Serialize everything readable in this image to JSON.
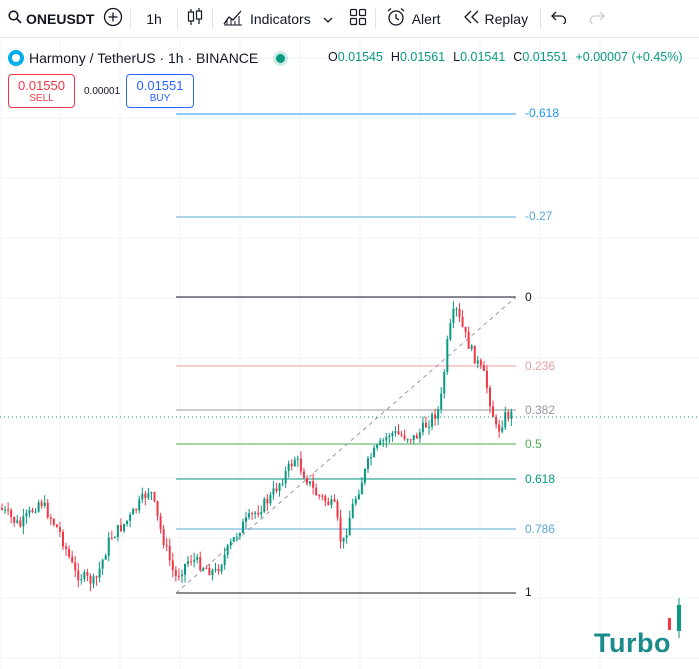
{
  "toolbar": {
    "symbol": "ONEUSDT",
    "interval": "1h",
    "indicators_label": "Indicators",
    "alert_label": "Alert",
    "replay_label": "Replay",
    "icons": [
      "search-icon",
      "add-symbol-icon",
      "candles-icon",
      "indicators-icon",
      "chevron-down-icon",
      "templates-icon",
      "alert-icon",
      "replay-icon",
      "undo-icon",
      "redo-icon"
    ]
  },
  "legend": {
    "title": "Harmony / TetherUS · 1h · BINANCE",
    "open_key": "O",
    "open": "0.01545",
    "high_key": "H",
    "high": "0.01561",
    "low_key": "L",
    "low": "0.01541",
    "close_key": "C",
    "close": "0.01551",
    "change": "+0.00007 (+0.45%)"
  },
  "trade": {
    "sell_price": "0.01550",
    "sell_label": "SELL",
    "spread": "0.00001",
    "buy_price": "0.01551",
    "buy_label": "BUY"
  },
  "fib_levels": [
    {
      "label": "-0.618",
      "color": "#2196f3"
    },
    {
      "label": "-0.27",
      "color": "#5aa7d8"
    },
    {
      "label": "0",
      "color": "#131722"
    },
    {
      "label": "0.236",
      "color": "#e8a0a0"
    },
    {
      "label": "0.382",
      "color": "#9598a1"
    },
    {
      "label": "0.5",
      "color": "#4caf50"
    },
    {
      "label": "0.618",
      "color": "#089981"
    },
    {
      "label": "0.786",
      "color": "#5aa7d8"
    },
    {
      "label": "1",
      "color": "#131722"
    }
  ],
  "colors": {
    "up": "#089981",
    "down": "#f23645",
    "current_price_line": "#089981"
  },
  "watermark": "Turbo"
}
